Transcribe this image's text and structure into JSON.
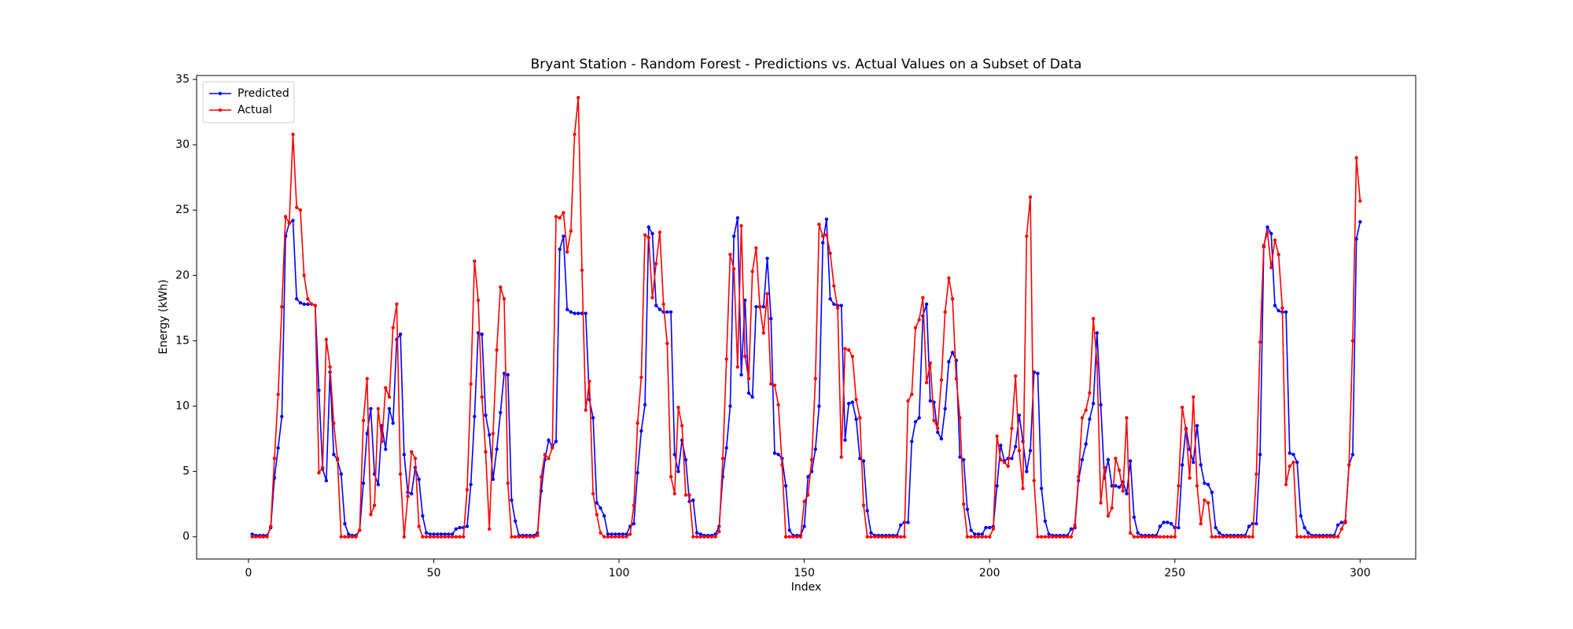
{
  "chart_data": {
    "type": "line",
    "title": "Bryant Station - Random Forest - Predictions vs. Actual Values on a Subset of Data",
    "x_label": "Index",
    "y_label": "Energy (kWh)",
    "x": [
      1,
      2,
      3,
      4,
      5,
      6,
      7,
      8,
      9,
      10,
      11,
      12,
      13,
      14,
      15,
      16,
      17,
      18,
      19,
      20,
      21,
      22,
      23,
      24,
      25,
      26,
      27,
      28,
      29,
      30,
      31,
      32,
      33,
      34,
      35,
      36,
      37,
      38,
      39,
      40,
      41,
      42,
      43,
      44,
      45,
      46,
      47,
      48,
      49,
      50,
      51,
      52,
      53,
      54,
      55,
      56,
      57,
      58,
      59,
      60,
      61,
      62,
      63,
      64,
      65,
      66,
      67,
      68,
      69,
      70,
      71,
      72,
      73,
      74,
      75,
      76,
      77,
      78,
      79,
      80,
      81,
      82,
      83,
      84,
      85,
      86,
      87,
      88,
      89,
      90,
      91,
      92,
      93,
      94,
      95,
      96,
      97,
      98,
      99,
      100,
      101,
      102,
      103,
      104,
      105,
      106,
      107,
      108,
      109,
      110,
      111,
      112,
      113,
      114,
      115,
      116,
      117,
      118,
      119,
      120,
      121,
      122,
      123,
      124,
      125,
      126,
      127,
      128,
      129,
      130,
      131,
      132,
      133,
      134,
      135,
      136,
      137,
      138,
      139,
      140,
      141,
      142,
      143,
      144,
      145,
      146,
      147,
      148,
      149,
      150,
      151,
      152,
      153,
      154,
      155,
      156,
      157,
      158,
      159,
      160,
      161,
      162,
      163,
      164,
      165,
      166,
      167,
      168,
      169,
      170,
      171,
      172,
      173,
      174,
      175,
      176,
      177,
      178,
      179,
      180,
      181,
      182,
      183,
      184,
      185,
      186,
      187,
      188,
      189,
      190,
      191,
      192,
      193,
      194,
      195,
      196,
      197,
      198,
      199,
      200,
      201,
      202,
      203,
      204,
      205,
      206,
      207,
      208,
      209,
      210,
      211,
      212,
      213,
      214,
      215,
      216,
      217,
      218,
      219,
      220,
      221,
      222,
      223,
      224,
      225,
      226,
      227,
      228,
      229,
      230,
      231,
      232,
      233,
      234,
      235,
      236,
      237,
      238,
      239,
      240,
      241,
      242,
      243,
      244,
      245,
      246,
      247,
      248,
      249,
      250,
      251,
      252,
      253,
      254,
      255,
      256,
      257,
      258,
      259,
      260,
      261,
      262,
      263,
      264,
      265,
      266,
      267,
      268,
      269,
      270,
      271,
      272,
      273,
      274,
      275,
      276,
      277,
      278,
      279,
      280,
      281,
      282,
      283,
      284,
      285,
      286,
      287,
      288,
      289,
      290,
      291,
      292,
      293,
      294,
      295,
      296,
      297,
      298,
      299,
      300
    ],
    "series": [
      {
        "name": "Predicted",
        "color": "#0000ff",
        "values": [
          0.2,
          0.1,
          0.1,
          0.1,
          0.1,
          0.7,
          4.5,
          6.8,
          9.2,
          23,
          24,
          24.2,
          18.2,
          17.9,
          17.8,
          17.8,
          17.8,
          17.7,
          11.2,
          5.2,
          4.3,
          12.6,
          6.3,
          5.9,
          4.8,
          1.0,
          0.2,
          0.1,
          0.1,
          0.5,
          4.1,
          7.9,
          9.8,
          4.8,
          4.0,
          8.5,
          6.7,
          9.8,
          8.7,
          15.1,
          15.5,
          6.3,
          3.4,
          3.3,
          5.3,
          4.4,
          1.6,
          0.3,
          0.2,
          0.2,
          0.2,
          0.2,
          0.2,
          0.2,
          0.2,
          0.6,
          0.7,
          0.7,
          0.8,
          4,
          9.2,
          15.6,
          15.5,
          9.3,
          7.8,
          4.4,
          6.7,
          9.5,
          12.5,
          12.4,
          2.8,
          1.2,
          0.1,
          0.1,
          0.1,
          0.1,
          0.1,
          0.3,
          3.5,
          5.9,
          7.4,
          6.9,
          7.3,
          22,
          23,
          17.4,
          17.2,
          17.1,
          17.1,
          17.1,
          17.1,
          10.5,
          9.1,
          2.6,
          2.2,
          1.6,
          0.2,
          0.2,
          0.2,
          0.2,
          0.2,
          0.2,
          0.8,
          1,
          4.9,
          8.1,
          10.1,
          23.7,
          23.2,
          17.7,
          17.4,
          17.2,
          17.2,
          17.2,
          6.3,
          5.0,
          7.4,
          5.9,
          2.7,
          2.8,
          0.3,
          0.2,
          0.1,
          0.1,
          0.1,
          0.2,
          0.8,
          4.6,
          6.8,
          10,
          23,
          24.4,
          12.4,
          18.1,
          11,
          10.7,
          17.6,
          17.6,
          17.6,
          21.3,
          16.7,
          6.4,
          6.3,
          6,
          3.9,
          0.5,
          0.1,
          0.1,
          0.1,
          0.8,
          4.6,
          5,
          6.7,
          10,
          22.5,
          24.3,
          18.2,
          17.8,
          17.7,
          17.7,
          7.4,
          10.2,
          10.3,
          9,
          6,
          5.8,
          2,
          0.3,
          0.1,
          0.1,
          0.1,
          0.1,
          0.1,
          0.1,
          0.1,
          0.9,
          1.1,
          1.1,
          7.3,
          8.8,
          9.1,
          16.9,
          17.8,
          10.4,
          10.3,
          8,
          7.5,
          9.8,
          13.4,
          14.1,
          13.5,
          6.1,
          5.9,
          2.1,
          0.5,
          0.2,
          0.2,
          0.2,
          0.7,
          0.7,
          0.8,
          3.9,
          7,
          5.8,
          6,
          6,
          6.9,
          9.3,
          7.3,
          5,
          6.6,
          12.6,
          12.5,
          3.7,
          1.2,
          0.2,
          0.1,
          0.1,
          0.1,
          0.1,
          0.1,
          0.6,
          0.7,
          4.3,
          5.9,
          7.1,
          9,
          10.2,
          15.6,
          10.1,
          4.5,
          5.9,
          3.9,
          3.9,
          3.8,
          4.2,
          3.3,
          5.8,
          1.5,
          0.3,
          0.1,
          0.1,
          0.1,
          0.1,
          0.1,
          0.8,
          1.1,
          1.1,
          1,
          0.7,
          0.7,
          5.5,
          8.3,
          6.7,
          5.7,
          8.5,
          5.5,
          4.1,
          4,
          3.4,
          0.7,
          0.3,
          0.1,
          0.1,
          0.1,
          0.1,
          0.1,
          0.1,
          0.1,
          0.8,
          1,
          1,
          6.3,
          22.2,
          23.7,
          23.2,
          17.7,
          17.3,
          17.2,
          17.2,
          6.4,
          6.3,
          5.7,
          1.6,
          0.7,
          0.3,
          0.1,
          0.1,
          0.1,
          0.1,
          0.1,
          0.1,
          0.1,
          0.9,
          1.1,
          1.1,
          5.5,
          6.3,
          22.8,
          24.1
        ]
      },
      {
        "name": "Actual",
        "color": "#ff0000",
        "values": [
          0,
          0,
          0,
          0,
          0,
          0.8,
          6,
          10.9,
          17.6,
          24.5,
          24,
          30.8,
          25.2,
          25,
          20,
          18.2,
          17.8,
          17.7,
          4.9,
          5.3,
          15.1,
          13,
          8.7,
          6,
          0,
          0,
          0,
          0,
          0,
          0.5,
          8.9,
          12.1,
          1.7,
          2.4,
          9.8,
          7.3,
          11.4,
          10.7,
          16,
          17.8,
          4.8,
          0,
          3.1,
          6.5,
          6,
          0.8,
          0,
          0,
          0,
          0,
          0,
          0,
          0,
          0,
          0,
          0,
          0,
          0,
          3.6,
          11.7,
          21.1,
          18.1,
          10.7,
          6.5,
          0.6,
          7.9,
          14.3,
          19.1,
          18.2,
          4.1,
          0,
          0,
          0,
          0,
          0,
          0,
          0,
          0.1,
          4.6,
          6.3,
          6,
          6.8,
          24.5,
          24.4,
          24.8,
          21.8,
          23.4,
          30.8,
          33.6,
          20.4,
          9.7,
          11.9,
          3.3,
          1.7,
          0.3,
          0,
          0,
          0,
          0,
          0,
          0,
          0,
          0.2,
          2.4,
          8.7,
          12.2,
          23.1,
          22.9,
          18.3,
          20.9,
          23.3,
          17.8,
          14.8,
          4.6,
          3.3,
          9.9,
          8.5,
          3.2,
          3.2,
          0,
          0,
          0,
          0,
          0,
          0,
          0,
          0.4,
          6,
          13.6,
          21.6,
          20.5,
          13,
          23.8,
          13.8,
          12.1,
          20.3,
          22.1,
          17.6,
          15.6,
          18.6,
          11.7,
          11.6,
          10.1,
          5.5,
          0,
          0,
          0,
          0,
          0,
          2.7,
          3.2,
          5.9,
          12.1,
          23.9,
          23,
          23.1,
          21.7,
          19.2,
          17.5,
          6.1,
          14.4,
          14.3,
          13.8,
          10.5,
          9.1,
          2.4,
          0,
          0,
          0,
          0,
          0,
          0,
          0,
          0,
          0,
          0,
          0,
          10.4,
          10.9,
          16,
          16.6,
          18.3,
          11.8,
          13.3,
          8.9,
          8.3,
          12,
          17.2,
          19.8,
          18.2,
          12.1,
          9.1,
          2.5,
          0,
          0,
          0,
          0,
          0,
          0,
          0,
          0.6,
          7.7,
          5.9,
          5.7,
          5.4,
          8.3,
          12.3,
          6.6,
          3.7,
          23,
          26,
          4.3,
          0,
          0,
          0,
          0,
          0,
          0,
          0,
          0,
          0,
          0,
          0.9,
          4.6,
          9.1,
          9.7,
          11,
          16.7,
          13.3,
          2.6,
          5.3,
          1.6,
          2.2,
          6,
          5.1,
          3.5,
          9.1,
          0.3,
          0,
          0,
          0,
          0,
          0,
          0,
          0,
          0,
          0,
          0,
          0,
          0,
          3.9,
          9.9,
          8.2,
          4.5,
          10.7,
          3.9,
          1,
          2.8,
          2.6,
          0,
          0,
          0,
          0,
          0,
          0,
          0,
          0,
          0,
          0,
          0,
          0,
          4.8,
          14.9,
          22.3,
          23.3,
          20.6,
          22.7,
          21.6,
          17.5,
          4,
          5.4,
          5.7,
          0,
          0,
          0,
          0,
          0,
          0,
          0,
          0,
          0,
          0,
          0,
          0,
          0.6,
          1.2,
          5.5,
          15,
          29,
          25.7
        ]
      }
    ],
    "xlim": [
      -14,
      315
    ],
    "ylim": [
      -1.7,
      35.3
    ],
    "xticks": [
      0,
      50,
      100,
      150,
      200,
      250,
      300
    ],
    "yticks": [
      0,
      5,
      10,
      15,
      20,
      25,
      30,
      35
    ],
    "grid": false,
    "legend": "upper left"
  }
}
